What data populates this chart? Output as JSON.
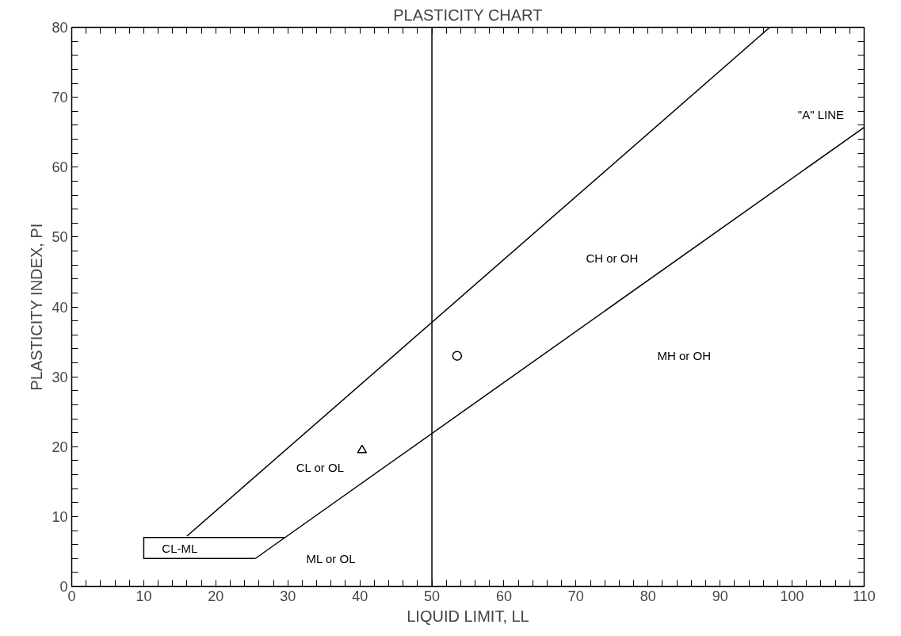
{
  "chart_data": {
    "type": "line",
    "title": "PLASTICITY CHART",
    "xlabel": "LIQUID LIMIT, LL",
    "ylabel": "PLASTICITY INDEX, PI",
    "xlim": [
      0,
      110
    ],
    "ylim": [
      0,
      80
    ],
    "xticks": [
      0,
      {
        "value": 2,
        "label": null
      },
      {
        "value": 4,
        "label": null
      },
      {
        "value": 6,
        "label": null
      },
      {
        "value": 8,
        "label": null
      },
      10,
      {
        "value": 12,
        "label": null
      },
      {
        "value": 14,
        "label": null
      },
      {
        "value": 16,
        "label": null
      },
      {
        "value": 18,
        "label": null
      },
      20,
      {
        "value": 22,
        "label": null
      },
      {
        "value": 24,
        "label": null
      },
      {
        "value": 26,
        "label": null
      },
      {
        "value": 28,
        "label": null
      },
      30,
      {
        "value": 32,
        "label": null
      },
      {
        "value": 34,
        "label": null
      },
      {
        "value": 36,
        "label": null
      },
      {
        "value": 38,
        "label": null
      },
      40,
      {
        "value": 42,
        "label": null
      },
      {
        "value": 44,
        "label": null
      },
      {
        "value": 46,
        "label": null
      },
      {
        "value": 48,
        "label": null
      },
      50,
      {
        "value": 52,
        "label": null
      },
      {
        "value": 54,
        "label": null
      },
      {
        "value": 56,
        "label": null
      },
      {
        "value": 58,
        "label": null
      },
      60,
      {
        "value": 62,
        "label": null
      },
      {
        "value": 64,
        "label": null
      },
      {
        "value": 66,
        "label": null
      },
      {
        "value": 68,
        "label": null
      },
      70,
      {
        "value": 72,
        "label": null
      },
      {
        "value": 74,
        "label": null
      },
      {
        "value": 76,
        "label": null
      },
      {
        "value": 78,
        "label": null
      },
      80,
      {
        "value": 82,
        "label": null
      },
      {
        "value": 84,
        "label": null
      },
      {
        "value": 86,
        "label": null
      },
      {
        "value": 88,
        "label": null
      },
      90,
      {
        "value": 92,
        "label": null
      },
      {
        "value": 94,
        "label": null
      },
      {
        "value": 96,
        "label": null
      },
      {
        "value": 98,
        "label": null
      },
      100,
      {
        "value": 102,
        "label": null
      },
      {
        "value": 104,
        "label": null
      },
      {
        "value": 106,
        "label": null
      },
      {
        "value": 108,
        "label": null
      },
      110
    ],
    "yticks": [
      0,
      {
        "value": 2,
        "label": null
      },
      {
        "value": 4,
        "label": null
      },
      {
        "value": 6,
        "label": null
      },
      {
        "value": 8,
        "label": null
      },
      10,
      {
        "value": 12,
        "label": null
      },
      {
        "value": 14,
        "label": null
      },
      {
        "value": 16,
        "label": null
      },
      {
        "value": 18,
        "label": null
      },
      20,
      {
        "value": 22,
        "label": null
      },
      {
        "value": 24,
        "label": null
      },
      {
        "value": 26,
        "label": null
      },
      {
        "value": 28,
        "label": null
      },
      30,
      {
        "value": 32,
        "label": null
      },
      {
        "value": 34,
        "label": null
      },
      {
        "value": 36,
        "label": null
      },
      {
        "value": 38,
        "label": null
      },
      40,
      {
        "value": 42,
        "label": null
      },
      {
        "value": 44,
        "label": null
      },
      {
        "value": 46,
        "label": null
      },
      {
        "value": 48,
        "label": null
      },
      50,
      {
        "value": 52,
        "label": null
      },
      {
        "value": 54,
        "label": null
      },
      {
        "value": 56,
        "label": null
      },
      {
        "value": 58,
        "label": null
      },
      60,
      {
        "value": 62,
        "label": null
      },
      {
        "value": 64,
        "label": null
      },
      {
        "value": 66,
        "label": null
      },
      {
        "value": 68,
        "label": null
      },
      70,
      {
        "value": 72,
        "label": null
      },
      {
        "value": 74,
        "label": null
      },
      {
        "value": 76,
        "label": null
      },
      {
        "value": 78,
        "label": null
      },
      80
    ],
    "grid": false,
    "series": [
      {
        "color": "#000000",
        "x": [
          16,
          96.9
        ],
        "values": [
          7.2,
          80
        ]
      },
      {
        "color": "#000000",
        "x": [
          25.5,
          110
        ],
        "values": [
          4,
          65.7
        ]
      },
      {
        "color": "#000000",
        "x": [
          29.6,
          10,
          10,
          25.5
        ],
        "values": [
          7,
          7,
          4,
          4
        ]
      },
      {
        "type": "scatter",
        "marker": "circle",
        "color": "#000000",
        "x": [
          53.5
        ],
        "values": [
          33
        ]
      },
      {
        "type": "scatter",
        "marker": "triangle",
        "color": "#000000",
        "x": [
          40.3
        ],
        "values": [
          19.5
        ]
      }
    ],
    "ref_lines": [
      {
        "axis": "x",
        "value": 50,
        "color": "#000000"
      }
    ],
    "annotations": [
      "\"A\" LINE",
      "CH or OH",
      "MH or OH",
      "CL or OL",
      "CL-ML",
      "ML or OL"
    ]
  }
}
